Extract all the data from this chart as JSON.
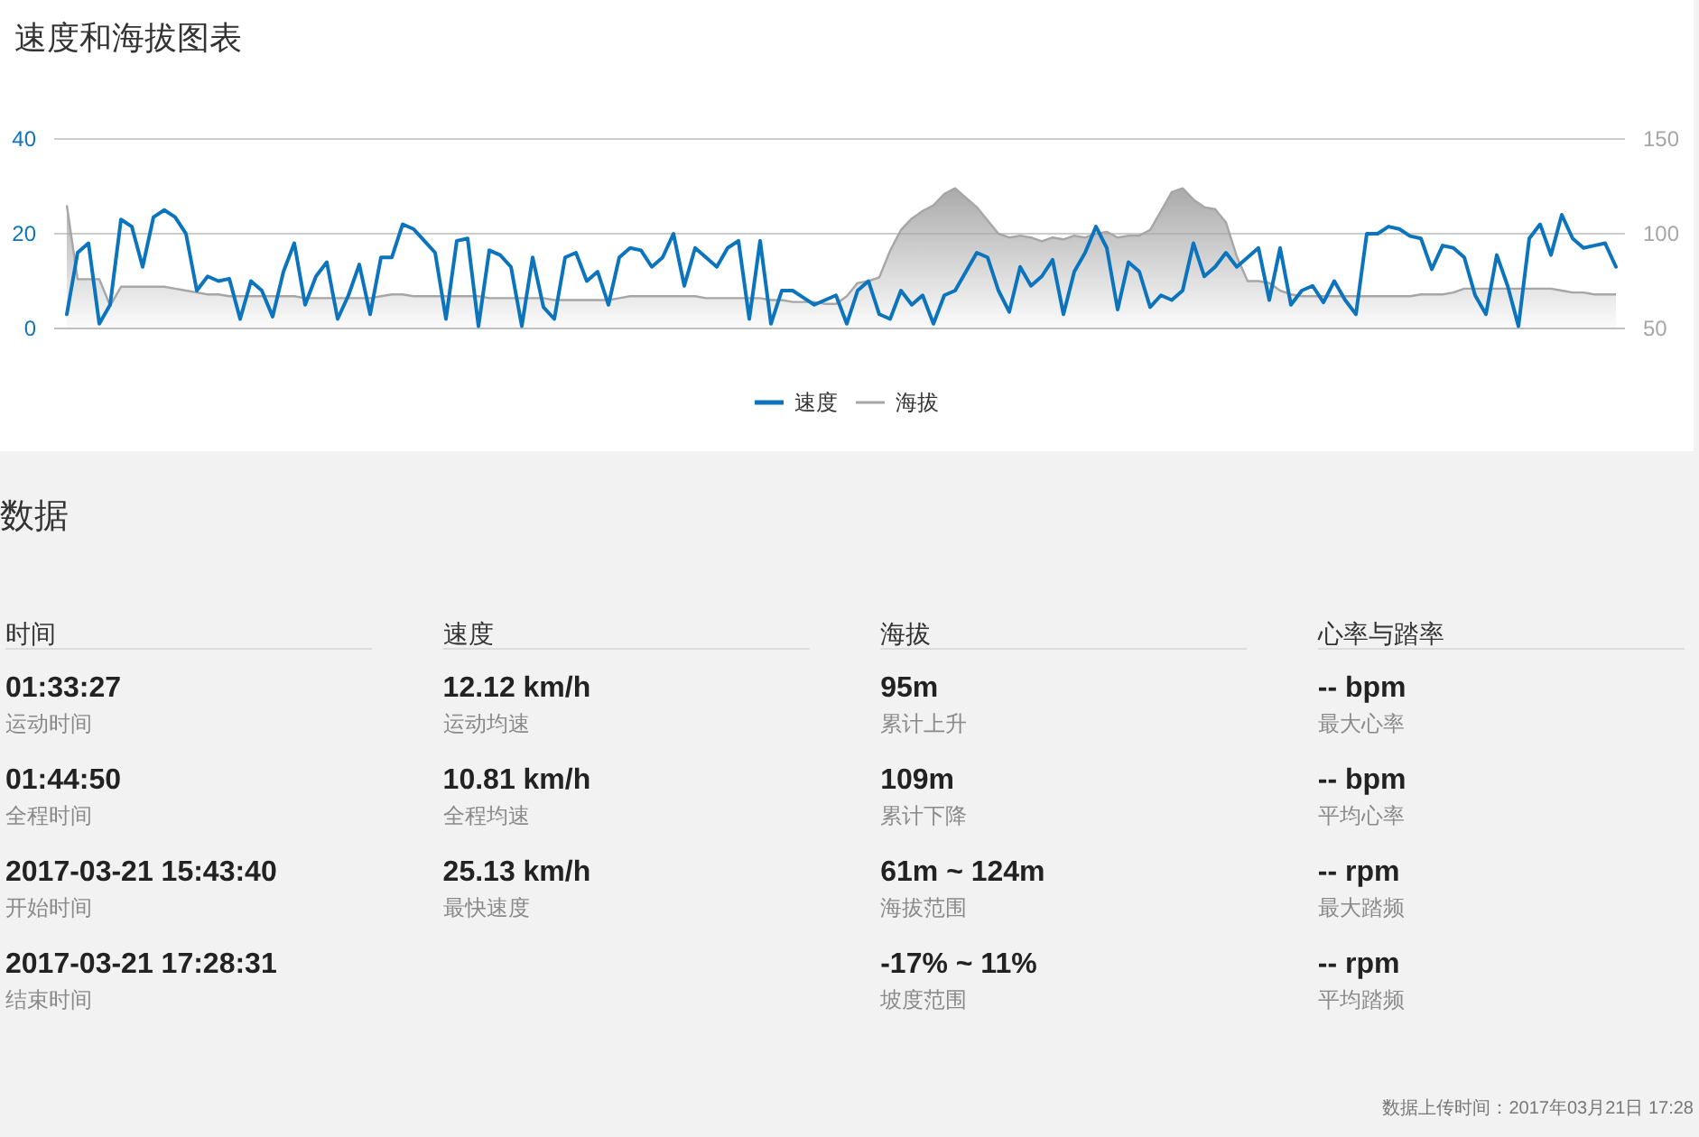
{
  "chart_data": [
    {
      "type": "line",
      "title": "速度和海拔图表",
      "categories": [
        null,
        null,
        null,
        null,
        null,
        null,
        null,
        null,
        null,
        null,
        null,
        null,
        null,
        null,
        null,
        null,
        null,
        null,
        null,
        null,
        null,
        null,
        null,
        null,
        null,
        null,
        null,
        null,
        null,
        null,
        null,
        null,
        null,
        null,
        null,
        null,
        null,
        null,
        null,
        null,
        null,
        null,
        null,
        null,
        null,
        null,
        null,
        null,
        null,
        null,
        null,
        null,
        null,
        null,
        null,
        null,
        null,
        null,
        null,
        null,
        null,
        null,
        null,
        null,
        null,
        null,
        null,
        null,
        null,
        null,
        null,
        null,
        null,
        null,
        null,
        null,
        null,
        null,
        null,
        null,
        null,
        null,
        null,
        null,
        null,
        null,
        null,
        null,
        null,
        null,
        null,
        null,
        null,
        null,
        null,
        null,
        null,
        null,
        null,
        null,
        null,
        null,
        null,
        null,
        null,
        null,
        null,
        null,
        null,
        null,
        null,
        null,
        null,
        null,
        null,
        null,
        null,
        null,
        null,
        null,
        null,
        null,
        null,
        null,
        null,
        null,
        null,
        null,
        null,
        null,
        null,
        null,
        null,
        null,
        null,
        null,
        null,
        null,
        null,
        null,
        null,
        null,
        null,
        null
      ],
      "series": [
        {
          "name": "速度",
          "type": "line",
          "color": "#0b74bd",
          "values": [
            3,
            16,
            18,
            1,
            5,
            23,
            21.5,
            13,
            23.5,
            25,
            23.5,
            20,
            8,
            11,
            10,
            10.5,
            2,
            10,
            8,
            2.5,
            12,
            18,
            5,
            11,
            14,
            2,
            7,
            13.5,
            3,
            15,
            15,
            22,
            21,
            18.5,
            16,
            2,
            18.5,
            19,
            0.5,
            16.5,
            15.5,
            13,
            0.5,
            15,
            4.5,
            2,
            15,
            16,
            10,
            12,
            5,
            15,
            17,
            16.5,
            13,
            15,
            20,
            9,
            17,
            15,
            13,
            17,
            18.5,
            2,
            18.5,
            1,
            8,
            8,
            6.5,
            5,
            6,
            7,
            1,
            8,
            10,
            3,
            2,
            8,
            5,
            7,
            1,
            7,
            8,
            12,
            16,
            15,
            8,
            3.5,
            13,
            9,
            11,
            14.5,
            3,
            12,
            16,
            21.5,
            17,
            4,
            14,
            12,
            4.5,
            7,
            6,
            8,
            18,
            11,
            13,
            16,
            13,
            15,
            17,
            6,
            17,
            5,
            8,
            9,
            5.5,
            10,
            6,
            3,
            20,
            20,
            21.5,
            21,
            19.5,
            19,
            12.5,
            17.5,
            17,
            15,
            7,
            3,
            15.5,
            9,
            0.5,
            19,
            22,
            15.5,
            24,
            19,
            17,
            17.5,
            18,
            13
          ]
        },
        {
          "name": "海拔",
          "type": "area",
          "axis": "y2",
          "color": "#a6a6a6",
          "values": [
            115,
            76,
            76,
            76,
            62,
            72,
            72,
            72,
            72,
            72,
            71,
            70,
            69,
            68,
            68,
            67,
            67,
            67,
            67,
            67,
            67,
            67,
            66,
            66,
            66,
            66,
            66,
            66,
            66,
            67,
            68,
            68,
            67,
            67,
            67,
            67,
            67,
            67,
            67,
            66,
            66,
            66,
            66,
            66,
            66,
            65,
            65,
            65,
            65,
            65,
            65,
            66,
            67,
            67,
            67,
            67,
            67,
            67,
            67,
            66,
            66,
            66,
            66,
            66,
            66,
            65,
            65,
            64,
            64,
            64,
            63,
            63,
            67,
            74,
            75,
            77,
            91,
            102,
            108,
            112,
            115,
            121,
            124,
            119,
            114,
            107,
            100,
            98,
            99,
            98,
            96,
            98,
            97,
            99,
            98,
            100,
            101,
            98,
            99,
            99,
            102,
            112,
            122,
            124,
            118,
            114,
            113,
            106,
            88,
            75,
            75,
            74,
            70,
            68,
            67,
            67,
            67,
            67,
            67,
            67,
            67,
            67,
            67,
            67,
            67,
            68,
            68,
            68,
            69,
            71,
            71,
            71,
            71,
            71,
            71,
            71,
            71,
            71,
            70,
            69,
            69,
            68,
            68,
            68
          ]
        }
      ],
      "ylim": [
        0,
        40
      ],
      "yticks": [
        0,
        20,
        40
      ],
      "y2lim": [
        50,
        150
      ],
      "y2ticks": [
        50,
        100,
        150
      ],
      "grid": "y",
      "legend": "bottom"
    },
    {
      "type": "other",
      "title": "数据",
      "categories": [
        "时间",
        "速度",
        "海拔",
        "心率与踏率"
      ],
      "cell_labels": [
        [
          "01:33:27",
          "12.12 km/h",
          "95m",
          "-- bpm"
        ],
        [
          "运动时间",
          "运动均速",
          "累计上升",
          "最大心率"
        ],
        [
          "01:44:50",
          "10.81 km/h",
          "109m",
          "-- bpm"
        ],
        [
          "全程时间",
          "全程均速",
          "累计下降",
          "平均心率"
        ],
        [
          "2017-03-21 15:43:40",
          "25.13 km/h",
          "61m ~ 124m",
          "-- rpm"
        ],
        [
          "开始时间",
          "最快速度",
          "海拔范围",
          "最大踏频"
        ],
        [
          "2017-03-21 17:28:31",
          null,
          "-17% ~ 11%",
          "-- rpm"
        ],
        [
          "结束时间",
          null,
          "坡度范围",
          "平均踏频"
        ]
      ],
      "annotations": [
        "数据上传时间：2017年03月21日 17:28"
      ]
    }
  ]
}
